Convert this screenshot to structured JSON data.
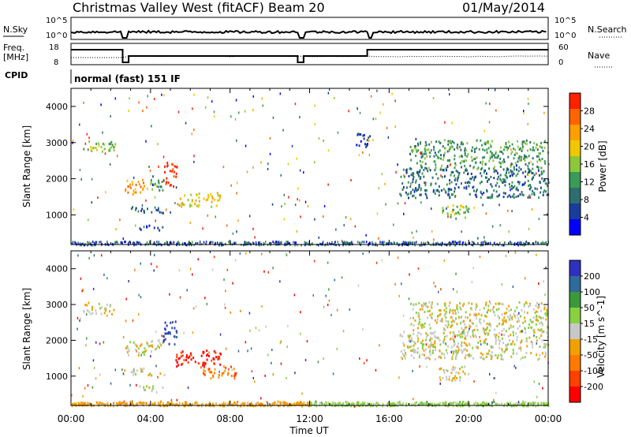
{
  "header": {
    "title": "Christmas Valley West (fitACF)",
    "beam": "Beam 20",
    "date": "01/May/2014"
  },
  "params": {
    "nsky_label": "N.Sky",
    "nsky_ticks": [
      "10^5",
      "10^0"
    ],
    "nsearch_label": "N.Search",
    "freq_label_1": "Freq.",
    "freq_label_2": "[MHz]",
    "freq_ticks": [
      "18",
      "8"
    ],
    "nave_label": "Nave",
    "nave_ticks": [
      "60",
      "0"
    ],
    "cpid_label": "CPID",
    "cpid_value": "normal (fast) 151 IF"
  },
  "colors": {
    "power": [
      "#0000ff",
      "#1a3c9c",
      "#2e6e6e",
      "#3a9a58",
      "#8cc83a",
      "#f0c800",
      "#ffa000",
      "#ff6400",
      "#ff2000"
    ],
    "velocity": [
      "#3030c0",
      "#2f6a9c",
      "#3a9a3a",
      "#88d040",
      "#c8c8c8",
      "#f0a000",
      "#ff7a00",
      "#ff4000",
      "#ff0000"
    ]
  },
  "chart_data": [
    {
      "type": "heatmap",
      "panel": "power",
      "xlabel": "",
      "ylabel": "Slant Range [km]",
      "x_ticks": [],
      "x_range_hours": [
        0,
        24
      ],
      "ylim": [
        180,
        4500
      ],
      "y_ticks": [
        "1000",
        "2000",
        "3000",
        "4000"
      ],
      "colorbar_label": "Power [dB]",
      "colorbar_ticks": [
        "4",
        "8",
        "12",
        "16",
        "20",
        "24",
        "28"
      ],
      "regions": [
        {
          "t0": 0.6,
          "t1": 2.2,
          "r0": 2750,
          "r1": 3100,
          "level": 4
        },
        {
          "t0": 2.7,
          "t1": 3.8,
          "r0": 1600,
          "r1": 2000,
          "level": 6
        },
        {
          "t0": 3.8,
          "t1": 4.6,
          "r0": 1700,
          "r1": 2100,
          "level": 3
        },
        {
          "t0": 4.6,
          "t1": 5.3,
          "r0": 1800,
          "r1": 2500,
          "level": 8
        },
        {
          "t0": 5.4,
          "t1": 7.5,
          "r0": 1250,
          "r1": 1650,
          "level": 5
        },
        {
          "t0": 3.0,
          "t1": 4.7,
          "r0": 1050,
          "r1": 1250,
          "level": 2
        },
        {
          "t0": 3.4,
          "t1": 4.6,
          "r0": 600,
          "r1": 750,
          "level": 1
        },
        {
          "t0": 14.2,
          "t1": 15.0,
          "r0": 2900,
          "r1": 3300,
          "level": 1
        },
        {
          "t0": 17.0,
          "t1": 24.0,
          "r0": 2300,
          "r1": 3100,
          "level": 3
        },
        {
          "t0": 16.5,
          "t1": 24.0,
          "r0": 1500,
          "r1": 2300,
          "level": 2
        },
        {
          "t0": 18.5,
          "t1": 20.0,
          "r0": 900,
          "r1": 1300,
          "level": 4
        }
      ]
    },
    {
      "type": "heatmap",
      "panel": "velocity",
      "xlabel": "Time UT",
      "ylabel": "Slant Range [km]",
      "x_ticks": [
        "00:00",
        "04:00",
        "08:00",
        "12:00",
        "16:00",
        "20:00",
        "00:00"
      ],
      "x_range_hours": [
        0,
        24
      ],
      "ylim": [
        180,
        4500
      ],
      "y_ticks": [
        "1000",
        "2000",
        "3000",
        "4000"
      ],
      "colorbar_label": "Velocity [m s^-1]",
      "colorbar_ticks": [
        "200",
        "100",
        "50",
        "15",
        "-15",
        "-50",
        "-100",
        "-200"
      ],
      "regions": [
        {
          "t0": 0.6,
          "t1": 2.2,
          "r0": 2750,
          "r1": 3100,
          "level": 4
        },
        {
          "t0": 2.7,
          "t1": 3.8,
          "r0": 1600,
          "r1": 2000,
          "level": 4
        },
        {
          "t0": 3.8,
          "t1": 4.6,
          "r0": 1700,
          "r1": 2100,
          "level": 4
        },
        {
          "t0": 4.6,
          "t1": 5.3,
          "r0": 1900,
          "r1": 2600,
          "level": 0
        },
        {
          "t0": 5.2,
          "t1": 7.5,
          "r0": 1300,
          "r1": 1750,
          "level": 8
        },
        {
          "t0": 6.5,
          "t1": 8.3,
          "r0": 950,
          "r1": 1300,
          "level": 6
        },
        {
          "t0": 3.0,
          "t1": 4.7,
          "r0": 1050,
          "r1": 1250,
          "level": 4
        },
        {
          "t0": 3.4,
          "t1": 4.6,
          "r0": 600,
          "r1": 750,
          "level": 4
        },
        {
          "t0": 17.0,
          "t1": 24.0,
          "r0": 2300,
          "r1": 3100,
          "level": 4
        },
        {
          "t0": 16.5,
          "t1": 24.0,
          "r0": 1500,
          "r1": 2300,
          "level": 4
        },
        {
          "t0": 18.5,
          "t1": 20.0,
          "r0": 900,
          "r1": 1300,
          "level": 4
        },
        {
          "t0": 0.0,
          "t1": 12.0,
          "r0": 190,
          "r1": 320,
          "level": 5
        },
        {
          "t0": 12.0,
          "t1": 24.0,
          "r0": 190,
          "r1": 320,
          "level": 3
        }
      ]
    }
  ]
}
